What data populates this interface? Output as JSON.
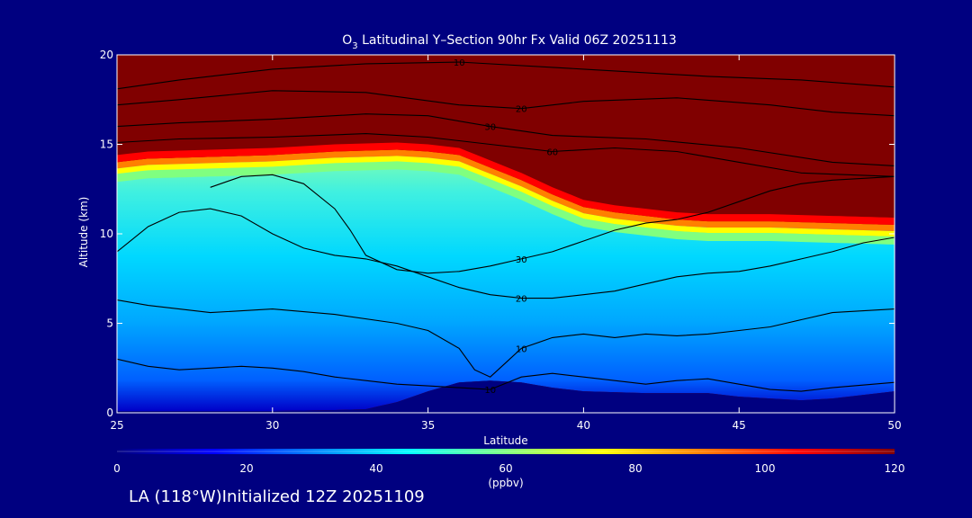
{
  "colors": {
    "background": "#000080",
    "foreground": "#ffffff",
    "contour_line": "#000000",
    "colormap": [
      "#000080",
      "#0000ff",
      "#0080ff",
      "#00ffff",
      "#80ff80",
      "#ffff00",
      "#ff8000",
      "#ff0000",
      "#800000"
    ]
  },
  "chart_data": {
    "type": "heatmap",
    "title": {
      "species": "O",
      "subscript": "3",
      "rest": " Latitudinal Y–Section 90hr  Fx Valid 06Z 20251113"
    },
    "xlabel": "Latitude",
    "ylabel": "Altitude (km)",
    "xlim": [
      25,
      50
    ],
    "ylim": [
      0,
      20
    ],
    "xticks": [
      25,
      30,
      35,
      40,
      45,
      50
    ],
    "yticks": [
      0,
      5,
      10,
      15,
      20
    ],
    "colorbar": {
      "vmin": 0,
      "vmax": 120,
      "ticks": [
        0,
        20,
        40,
        60,
        80,
        100,
        120
      ],
      "unit": "(ppbv)"
    },
    "terrain_km": [
      [
        25,
        0.1
      ],
      [
        28,
        0.1
      ],
      [
        30,
        0.1
      ],
      [
        32,
        0.15
      ],
      [
        33,
        0.2
      ],
      [
        34,
        0.6
      ],
      [
        35,
        1.2
      ],
      [
        36,
        1.7
      ],
      [
        37,
        1.8
      ],
      [
        38,
        1.7
      ],
      [
        39,
        1.4
      ],
      [
        40,
        1.2
      ],
      [
        42,
        1.1
      ],
      [
        44,
        1.1
      ],
      [
        45,
        0.9
      ],
      [
        46,
        0.8
      ],
      [
        47,
        0.7
      ],
      [
        48,
        0.8
      ],
      [
        49,
        1.0
      ],
      [
        50,
        1.2
      ]
    ],
    "tropopause_km": [
      [
        25,
        13.8
      ],
      [
        26,
        14.0
      ],
      [
        28,
        14.1
      ],
      [
        30,
        14.2
      ],
      [
        32,
        14.4
      ],
      [
        34,
        14.5
      ],
      [
        35,
        14.4
      ],
      [
        36,
        14.2
      ],
      [
        37,
        13.5
      ],
      [
        38,
        12.8
      ],
      [
        39,
        12.0
      ],
      [
        40,
        11.3
      ],
      [
        41,
        11.0
      ],
      [
        42,
        10.8
      ],
      [
        43,
        10.6
      ],
      [
        44,
        10.5
      ],
      [
        45,
        10.5
      ],
      [
        46,
        10.5
      ],
      [
        48,
        10.4
      ],
      [
        50,
        10.3
      ]
    ],
    "contours": [
      {
        "level": 10,
        "label": "10",
        "points": [
          [
            25,
            18.1
          ],
          [
            27,
            18.6
          ],
          [
            30,
            19.2
          ],
          [
            33,
            19.5
          ],
          [
            36,
            19.6
          ],
          [
            40,
            19.2
          ],
          [
            44,
            18.8
          ],
          [
            47,
            18.6
          ],
          [
            50,
            18.2
          ]
        ]
      },
      {
        "level": 20,
        "label": "20",
        "points": [
          [
            25,
            17.2
          ],
          [
            27,
            17.5
          ],
          [
            30,
            18.0
          ],
          [
            33,
            17.9
          ],
          [
            36,
            17.2
          ],
          [
            38,
            17.0
          ],
          [
            40,
            17.4
          ],
          [
            43,
            17.6
          ],
          [
            46,
            17.2
          ],
          [
            48,
            16.8
          ],
          [
            50,
            16.6
          ]
        ]
      },
      {
        "level": 30,
        "label": "30",
        "points": [
          [
            25,
            16.0
          ],
          [
            27,
            16.2
          ],
          [
            30,
            16.4
          ],
          [
            33,
            16.7
          ],
          [
            35,
            16.6
          ],
          [
            37,
            16.0
          ],
          [
            39,
            15.5
          ],
          [
            42,
            15.3
          ],
          [
            45,
            14.8
          ],
          [
            48,
            14.0
          ],
          [
            50,
            13.8
          ]
        ]
      },
      {
        "level": 60,
        "label": "60",
        "points": [
          [
            25,
            15.1
          ],
          [
            27,
            15.3
          ],
          [
            30,
            15.4
          ],
          [
            33,
            15.6
          ],
          [
            35,
            15.4
          ],
          [
            37,
            15.0
          ],
          [
            39,
            14.6
          ],
          [
            41,
            14.8
          ],
          [
            43,
            14.6
          ],
          [
            45,
            14.0
          ],
          [
            47,
            13.4
          ],
          [
            50,
            13.2
          ]
        ]
      },
      {
        "level": 20,
        "label": "20",
        "points": [
          [
            25,
            9.0
          ],
          [
            26,
            10.4
          ],
          [
            27,
            11.2
          ],
          [
            28,
            11.4
          ],
          [
            29,
            11.0
          ],
          [
            30,
            10.0
          ],
          [
            31,
            9.2
          ],
          [
            32,
            8.8
          ],
          [
            33,
            8.6
          ],
          [
            34,
            8.2
          ],
          [
            35,
            7.6
          ],
          [
            36,
            7.0
          ],
          [
            37,
            6.6
          ],
          [
            38,
            6.4
          ],
          [
            39,
            6.4
          ],
          [
            40,
            6.6
          ],
          [
            41,
            6.8
          ],
          [
            42,
            7.2
          ],
          [
            43,
            7.6
          ],
          [
            44,
            7.8
          ],
          [
            45,
            7.9
          ],
          [
            46,
            8.2
          ],
          [
            47,
            8.6
          ],
          [
            48,
            9.0
          ],
          [
            49,
            9.5
          ],
          [
            50,
            9.8
          ]
        ]
      },
      {
        "level": 30,
        "label": "30",
        "points": [
          [
            28,
            12.6
          ],
          [
            29,
            13.2
          ],
          [
            30,
            13.3
          ],
          [
            31,
            12.8
          ],
          [
            32,
            11.4
          ],
          [
            32.5,
            10.2
          ],
          [
            33,
            8.8
          ],
          [
            34,
            8.0
          ],
          [
            35,
            7.8
          ],
          [
            36,
            7.9
          ],
          [
            37,
            8.2
          ],
          [
            38,
            8.6
          ],
          [
            39,
            9.0
          ],
          [
            40,
            9.6
          ],
          [
            41,
            10.2
          ],
          [
            42,
            10.6
          ],
          [
            43,
            10.8
          ],
          [
            44,
            11.2
          ],
          [
            45,
            11.8
          ],
          [
            46,
            12.4
          ],
          [
            47,
            12.8
          ],
          [
            48,
            13.0
          ],
          [
            50,
            13.2
          ]
        ]
      },
      {
        "level": 10,
        "label": "10",
        "points": [
          [
            25,
            6.3
          ],
          [
            26,
            6.0
          ],
          [
            28,
            5.6
          ],
          [
            30,
            5.8
          ],
          [
            32,
            5.5
          ],
          [
            34,
            5.0
          ],
          [
            35,
            4.6
          ],
          [
            36,
            3.6
          ],
          [
            36.5,
            2.4
          ],
          [
            37,
            2.0
          ],
          [
            37.5,
            2.8
          ],
          [
            38,
            3.6
          ],
          [
            39,
            4.2
          ],
          [
            40,
            4.4
          ],
          [
            41,
            4.2
          ],
          [
            42,
            4.4
          ],
          [
            43,
            4.3
          ],
          [
            44,
            4.4
          ],
          [
            45,
            4.6
          ],
          [
            46,
            4.8
          ],
          [
            47,
            5.2
          ],
          [
            48,
            5.6
          ],
          [
            50,
            5.8
          ]
        ]
      },
      {
        "level": 10,
        "label": "10",
        "points": [
          [
            25,
            3.0
          ],
          [
            26,
            2.6
          ],
          [
            27,
            2.4
          ],
          [
            28,
            2.5
          ],
          [
            29,
            2.6
          ],
          [
            30,
            2.5
          ],
          [
            31,
            2.3
          ],
          [
            32,
            2.0
          ],
          [
            33,
            1.8
          ],
          [
            34,
            1.6
          ],
          [
            35,
            1.5
          ],
          [
            36,
            1.4
          ],
          [
            37,
            1.3
          ],
          [
            38,
            2.0
          ],
          [
            39,
            2.2
          ],
          [
            40,
            2.0
          ],
          [
            41,
            1.8
          ],
          [
            42,
            1.6
          ],
          [
            43,
            1.8
          ],
          [
            44,
            1.9
          ],
          [
            45,
            1.6
          ],
          [
            46,
            1.3
          ],
          [
            47,
            1.2
          ],
          [
            48,
            1.4
          ],
          [
            50,
            1.7
          ]
        ]
      }
    ]
  },
  "footer": {
    "text": "LA (118°W)Initialized 12Z 20251109"
  }
}
